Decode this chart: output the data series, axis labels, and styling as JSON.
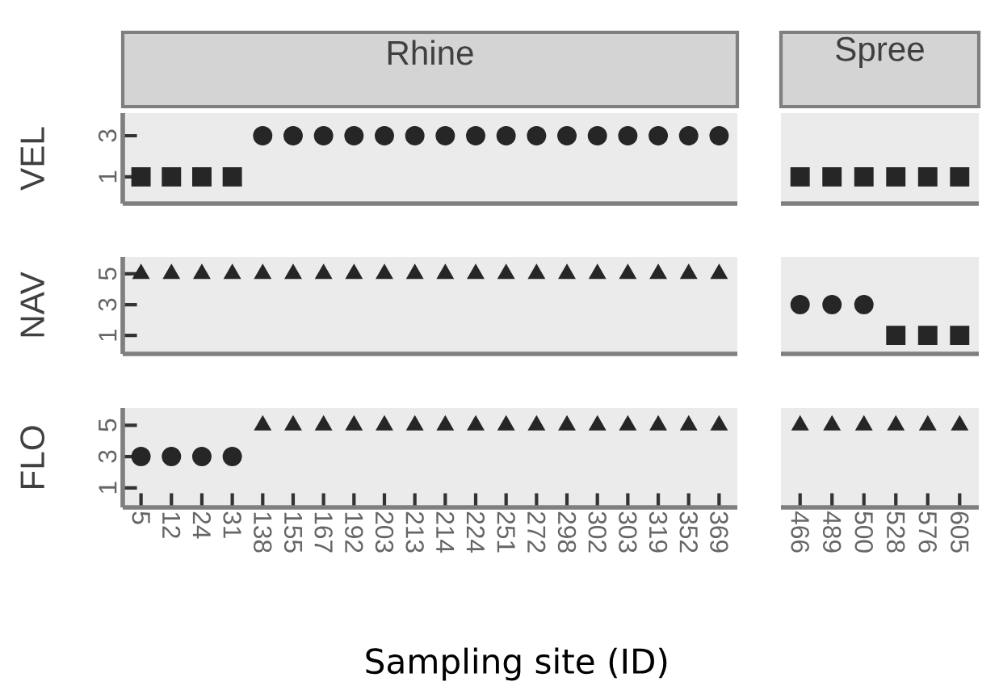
{
  "chart_data": [
    {
      "type": "scatter",
      "title": "Rhine",
      "ylabel": "VEL",
      "categories": [
        "5",
        "12",
        "24",
        "31",
        "138",
        "155",
        "167",
        "192",
        "203",
        "213",
        "214",
        "224",
        "251",
        "272",
        "298",
        "302",
        "303",
        "319",
        "352",
        "369"
      ],
      "ylim": [
        -0.3,
        4.1
      ],
      "yticks": [
        1,
        3
      ],
      "tick_labels": "y",
      "series": [
        {
          "marker": "square",
          "color": "#262626",
          "values": [
            1,
            1,
            1,
            1,
            null,
            null,
            null,
            null,
            null,
            null,
            null,
            null,
            null,
            null,
            null,
            null,
            null,
            null,
            null,
            null
          ]
        },
        {
          "marker": "circle",
          "color": "#262626",
          "values": [
            null,
            null,
            null,
            null,
            3,
            3,
            3,
            3,
            3,
            3,
            3,
            3,
            3,
            3,
            3,
            3,
            3,
            3,
            3,
            3
          ]
        }
      ]
    },
    {
      "type": "scatter",
      "title": "Spree",
      "categories": [
        "466",
        "489",
        "500",
        "528",
        "576",
        "605"
      ],
      "ylim": [
        -0.3,
        4.1
      ],
      "yticks": [
        1,
        3
      ],
      "tick_labels": false,
      "series": [
        {
          "marker": "square",
          "color": "#262626",
          "values": [
            1,
            1,
            1,
            1,
            1,
            1
          ]
        }
      ]
    },
    {
      "type": "scatter",
      "ylabel": "NAV",
      "categories": [
        "5",
        "12",
        "24",
        "31",
        "138",
        "155",
        "167",
        "192",
        "203",
        "213",
        "214",
        "224",
        "251",
        "272",
        "298",
        "302",
        "303",
        "319",
        "352",
        "369"
      ],
      "ylim": [
        -0.2,
        6.1
      ],
      "yticks": [
        1,
        3,
        5
      ],
      "tick_labels": "y",
      "series": [
        {
          "marker": "triangle",
          "color": "#262626",
          "values": [
            5,
            5,
            5,
            5,
            5,
            5,
            5,
            5,
            5,
            5,
            5,
            5,
            5,
            5,
            5,
            5,
            5,
            5,
            5,
            5
          ]
        }
      ]
    },
    {
      "type": "scatter",
      "categories": [
        "466",
        "489",
        "500",
        "528",
        "576",
        "605"
      ],
      "ylim": [
        -0.2,
        6.1
      ],
      "yticks": [
        1,
        3,
        5
      ],
      "tick_labels": false,
      "series": [
        {
          "marker": "circle",
          "color": "#262626",
          "values": [
            3,
            3,
            3,
            null,
            null,
            null
          ]
        },
        {
          "marker": "square",
          "color": "#262626",
          "values": [
            null,
            null,
            null,
            1,
            1,
            1
          ]
        }
      ]
    },
    {
      "type": "scatter",
      "ylabel": "FLO",
      "xlabel": "Sampling site (ID)",
      "categories": [
        "5",
        "12",
        "24",
        "31",
        "138",
        "155",
        "167",
        "192",
        "203",
        "213",
        "214",
        "224",
        "251",
        "272",
        "298",
        "302",
        "303",
        "319",
        "352",
        "369"
      ],
      "ylim": [
        -0.25,
        6.1
      ],
      "yticks": [
        1,
        3,
        5
      ],
      "series": [
        {
          "marker": "circle",
          "color": "#262626",
          "values": [
            3,
            3,
            3,
            3,
            null,
            null,
            null,
            null,
            null,
            null,
            null,
            null,
            null,
            null,
            null,
            null,
            null,
            null,
            null,
            null
          ]
        },
        {
          "marker": "triangle",
          "color": "#262626",
          "values": [
            null,
            null,
            null,
            null,
            5,
            5,
            5,
            5,
            5,
            5,
            5,
            5,
            5,
            5,
            5,
            5,
            5,
            5,
            5,
            5
          ]
        }
      ]
    },
    {
      "type": "scatter",
      "categories": [
        "466",
        "489",
        "500",
        "528",
        "576",
        "605"
      ],
      "ylim": [
        -0.25,
        6.1
      ],
      "yticks": [
        1,
        3,
        5
      ],
      "tick_labels": "x",
      "series": [
        {
          "marker": "triangle",
          "color": "#262626",
          "values": [
            5,
            5,
            5,
            5,
            5,
            5
          ]
        }
      ]
    }
  ]
}
